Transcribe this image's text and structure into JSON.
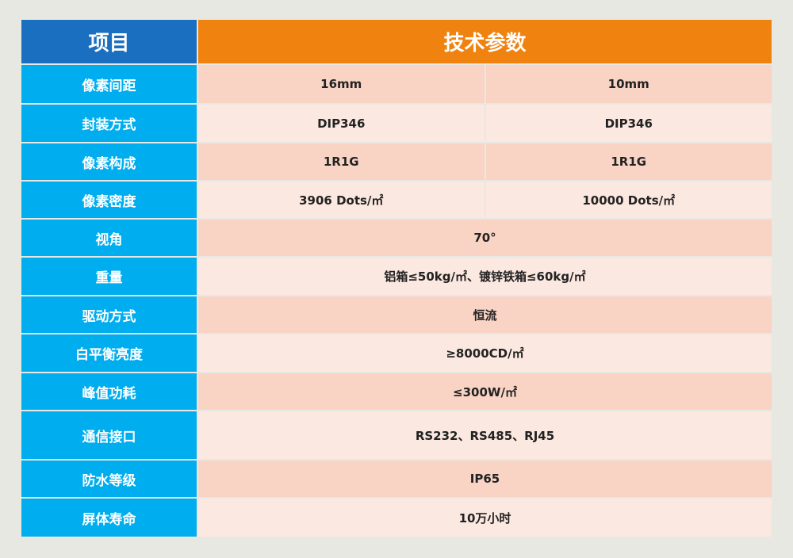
{
  "header": {
    "item": "项目",
    "params": "技术参数"
  },
  "table": {
    "rows": [
      {
        "label": "像素间距",
        "values": [
          "16mm",
          "10mm"
        ]
      },
      {
        "label": "封装方式",
        "values": [
          "DIP346",
          "DIP346"
        ]
      },
      {
        "label": "像素构成",
        "values": [
          "1R1G",
          "1R1G"
        ]
      },
      {
        "label": "像素密度",
        "values": [
          "3906 Dots/㎡",
          "10000 Dots/㎡"
        ]
      },
      {
        "label": "视角",
        "values": [
          "70°"
        ]
      },
      {
        "label": "重量",
        "values": [
          "铝箱≤50kg/㎡、镀锌铁箱≤60kg/㎡"
        ]
      },
      {
        "label": "驱动方式",
        "values": [
          "恒流"
        ]
      },
      {
        "label": "白平衡亮度",
        "values": [
          "≥8000CD/㎡"
        ]
      },
      {
        "label": "峰值功耗",
        "values": [
          "≤300W/㎡"
        ]
      },
      {
        "label": "通信接口",
        "values": [
          "RS232、RS485、RJ45"
        ]
      },
      {
        "label": "防水等级",
        "values": [
          "IP65"
        ]
      },
      {
        "label": "屏体寿命",
        "values": [
          "10万小时"
        ]
      }
    ]
  }
}
